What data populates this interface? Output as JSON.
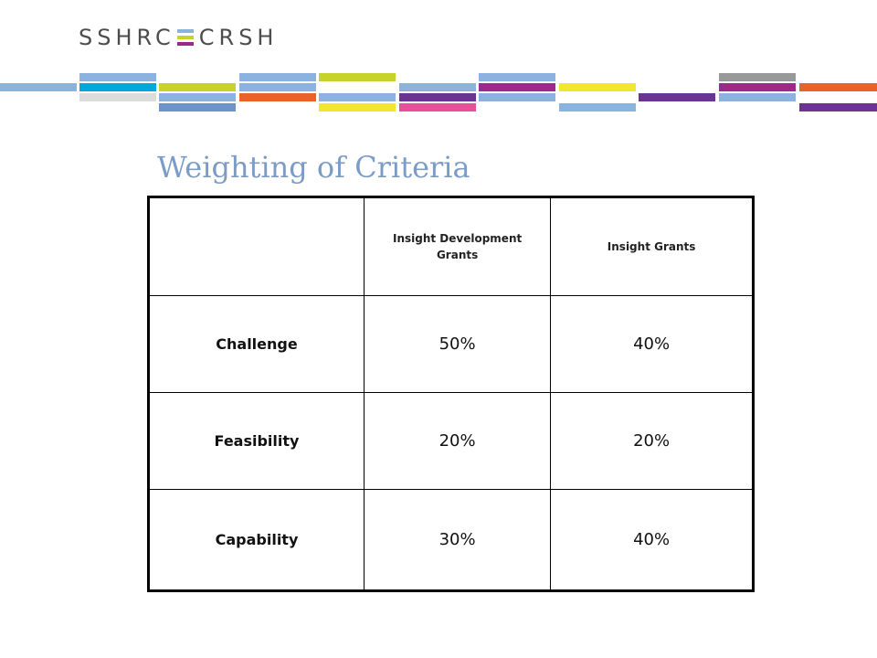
{
  "logo": {
    "left": "SSHRC",
    "right": "CRSH",
    "mark_colors": [
      "#8cb3e0",
      "#c8d22c",
      "#9b2a86"
    ]
  },
  "decor_colors": [
    "#8cb3e0",
    "#00a8e0",
    "#c8d22c",
    "#e86426",
    "#6b3393",
    "#a0288c",
    "#ec4f9a",
    "#f2e82a",
    "#999999",
    "#dcdcdc",
    "#6d93c8"
  ],
  "slide": {
    "title": "Weighting of Criteria"
  },
  "table": {
    "columns": [
      "",
      "Insight Development Grants",
      "Insight Grants"
    ],
    "rows": [
      {
        "criterion": "Challenge",
        "idg": "50%",
        "ig": "40%"
      },
      {
        "criterion": "Feasibility",
        "idg": "20%",
        "ig": "20%"
      },
      {
        "criterion": "Capability",
        "idg": "30%",
        "ig": "40%"
      }
    ]
  }
}
